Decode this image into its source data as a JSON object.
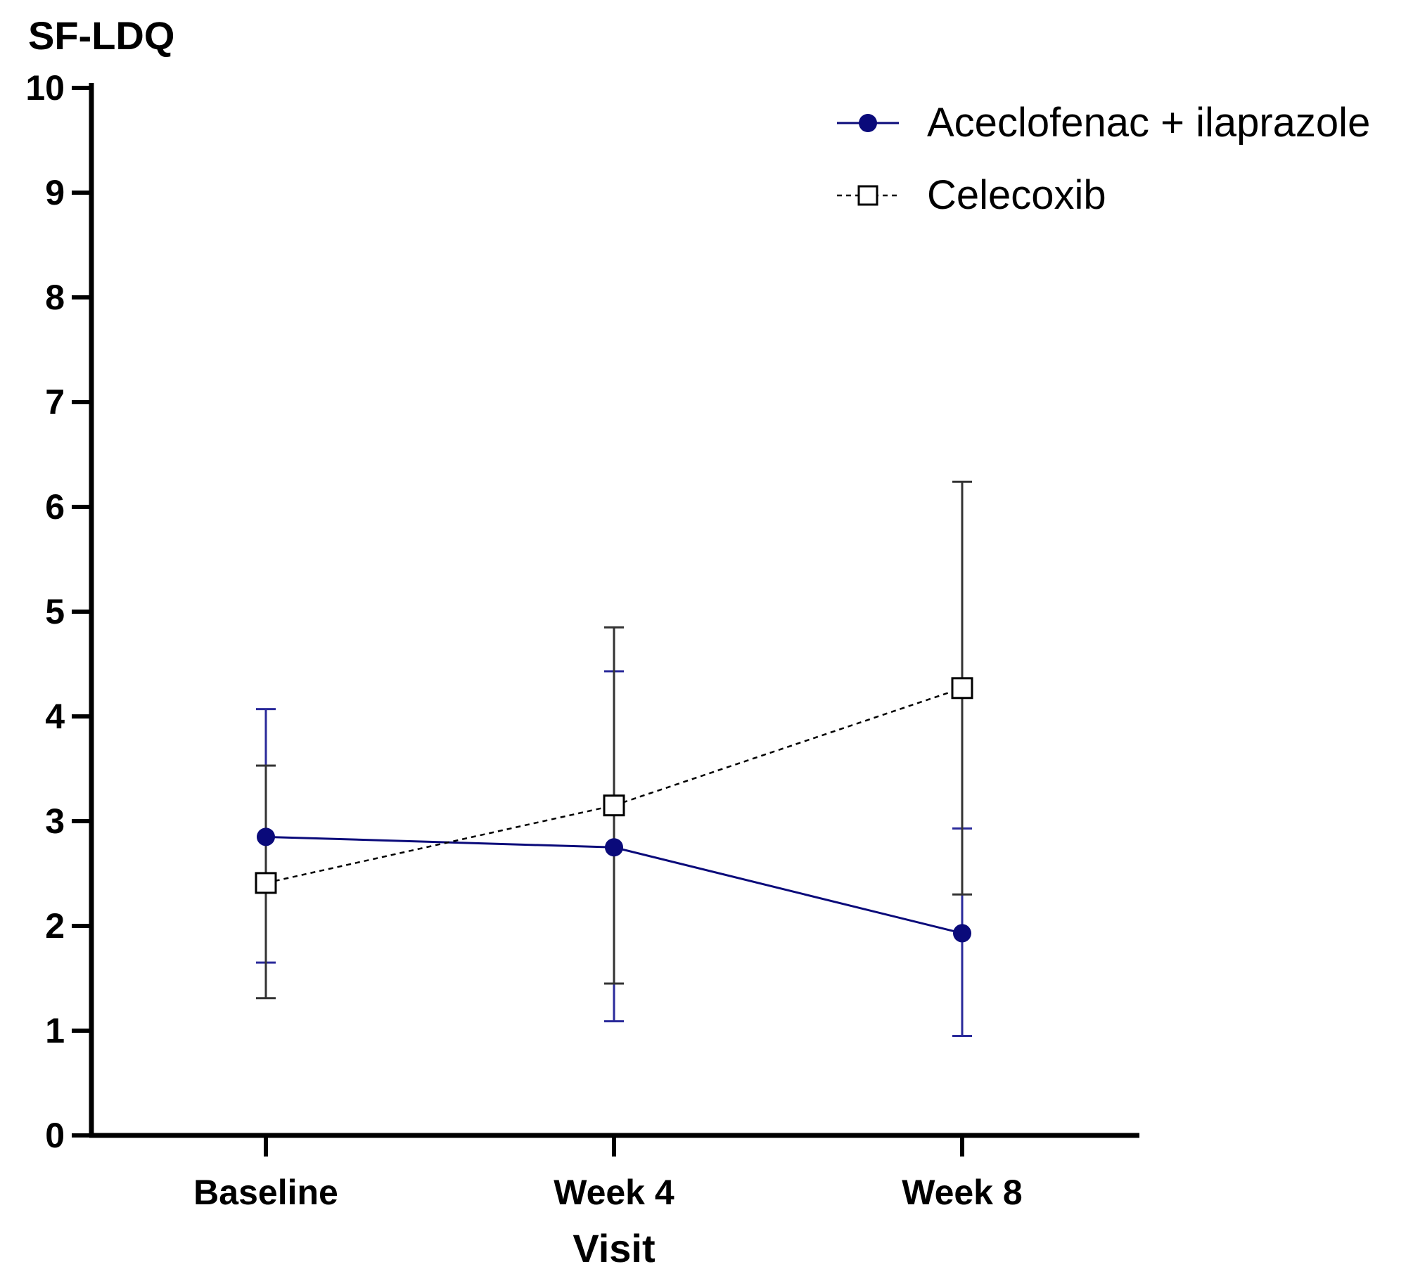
{
  "chart_data": {
    "type": "line",
    "title": "",
    "ylabel": "SF-LDQ",
    "xlabel": "Visit",
    "categories": [
      "Baseline",
      "Week 4",
      "Week 8"
    ],
    "ylim": [
      0,
      10
    ],
    "yticks": [
      "0",
      "1",
      "2",
      "3",
      "4",
      "5",
      "6",
      "7",
      "8",
      "9",
      "10"
    ],
    "grid": false,
    "legend_position": "top-right",
    "series": [
      {
        "name": "Aceclofenac + ilaprazole",
        "marker": "filled-circle",
        "line_style": "solid",
        "color": "#0a0a7a",
        "error_color": "#2a2a9a",
        "values": [
          2.85,
          2.75,
          1.93
        ],
        "err_upper": [
          4.07,
          4.43,
          2.93
        ],
        "err_lower": [
          1.65,
          1.09,
          0.95
        ]
      },
      {
        "name": "Celecoxib",
        "marker": "open-square",
        "line_style": "dashed",
        "color": "#000000",
        "error_color": "#333333",
        "values": [
          2.41,
          3.15,
          4.27
        ],
        "err_upper": [
          3.53,
          4.85,
          6.24
        ],
        "err_lower": [
          1.31,
          1.45,
          2.3
        ]
      }
    ]
  }
}
